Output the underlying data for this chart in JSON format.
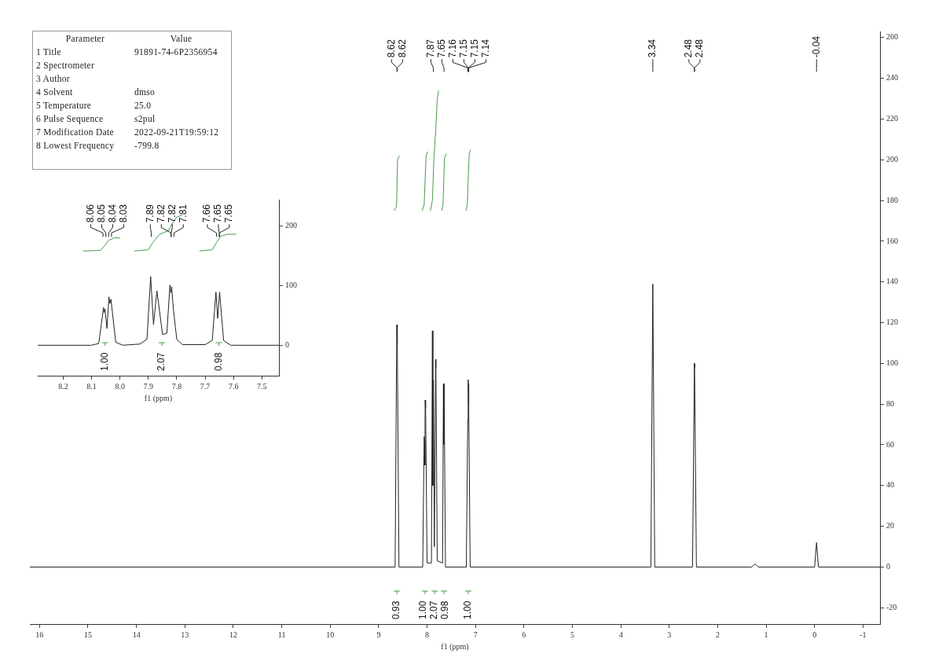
{
  "chart_data": [
    {
      "type": "other",
      "annotations": [
        "Parameter",
        "Value",
        "1 Title",
        "91891-74-6P2356954",
        "2 Spectrometer",
        null,
        "3 Author",
        null,
        "4 Solvent",
        "dmso",
        "5 Temperature",
        "25.0",
        "6 Pulse Sequence",
        "s2pul",
        "7 Modification Date",
        "2022-09-21T19:59:12",
        "8 Lowest Frequency",
        "-799.8"
      ]
    },
    {
      "type": "line",
      "xlabel": "f1 (ppm)",
      "xlim": [
        8.29,
        7.44
      ],
      "ylim": [
        -51,
        244
      ],
      "xticks": [
        8.2,
        8.1,
        {
          "value": 8,
          "label": "8.0"
        },
        7.9,
        7.8,
        7.7,
        7.6,
        7.5
      ],
      "yticks": [
        0,
        100,
        200
      ],
      "grid": false,
      "legend": false,
      "marker": "none",
      "series": [
        {
          "color": "#222222",
          "x": [
            8.29,
            8.1,
            8.075,
            8.058,
            8.056,
            8.053,
            8.046,
            8.039,
            8.036,
            8.032,
            8.015,
            7.99,
            7.93,
            7.905,
            7.892,
            7.882,
            7.87,
            7.85,
            7.835,
            7.824,
            7.821,
            7.818,
            7.812,
            7.8,
            7.78,
            7.7,
            7.675,
            7.662,
            7.656,
            7.649,
            7.635,
            7.61,
            7.44
          ],
          "values": [
            0,
            0,
            3,
            63,
            55,
            61,
            28,
            81,
            70,
            77,
            5,
            0,
            2,
            10,
            115,
            35,
            91,
            18,
            20,
            101,
            88,
            98,
            60,
            10,
            1,
            1,
            8,
            89,
            45,
            89,
            8,
            0,
            0
          ]
        },
        {
          "color": "#4a9a4a",
          "x": [
            8.13,
            8.07,
            8.055,
            8.04,
            8.02,
            8.0
          ],
          "values": [
            158,
            159,
            166,
            176,
            180,
            180
          ]
        },
        {
          "color": "#4a9a4a",
          "x": [
            7.95,
            7.9,
            7.885,
            7.86,
            7.83,
            7.815,
            7.8,
            7.78
          ],
          "values": [
            158,
            160,
            172,
            186,
            192,
            205,
            215,
            218
          ]
        },
        {
          "color": "#4a9a4a",
          "x": [
            7.72,
            7.675,
            7.66,
            7.645,
            7.62,
            7.59
          ],
          "values": [
            158,
            160,
            172,
            183,
            186,
            186
          ]
        }
      ],
      "annotations": [
        "8.06",
        "8.05",
        "8.04",
        "8.03",
        "7.89",
        "7.82",
        "7.82",
        "7.81",
        "7.66",
        "7.65",
        "7.65",
        "1.00",
        "2.07",
        "0.98"
      ]
    },
    {
      "type": "line",
      "xlabel": "f1 (ppm)",
      "xlim": [
        16.2,
        -1.35
      ],
      "ylim": [
        -28,
        263
      ],
      "xticks": [
        16,
        15,
        14,
        13,
        12,
        11,
        10,
        9,
        8,
        7,
        6,
        5,
        4,
        3,
        2,
        1,
        0,
        -1
      ],
      "yticks": [
        -20,
        0,
        20,
        40,
        60,
        80,
        100,
        120,
        140,
        160,
        180,
        200,
        220,
        240,
        260
      ],
      "grid": false,
      "legend": false,
      "marker": "none",
      "series": [
        {
          "color": "#222222",
          "x": [
            16.2,
            9.0,
            8.66,
            8.625,
            8.615,
            8.58,
            8.09,
            8.06,
            8.053,
            8.045,
            8.04,
            8.03,
            8.0,
            7.91,
            7.89,
            7.88,
            7.87,
            7.85,
            7.824,
            7.818,
            7.79,
            7.68,
            7.662,
            7.655,
            7.649,
            7.62,
            7.19,
            7.16,
            7.152,
            7.148,
            7.14,
            7.11,
            3.38,
            3.34,
            3.3,
            2.52,
            2.482,
            2.478,
            2.44,
            1.3,
            1.23,
            1.16,
            0.0,
            -0.04,
            -0.08,
            -1.35
          ],
          "values": [
            0,
            0,
            0,
            119,
            110,
            0,
            0,
            64,
            62,
            50,
            82,
            78,
            2,
            2,
            116,
            40,
            92,
            10,
            102,
            98,
            3,
            2,
            90,
            60,
            90,
            0,
            0,
            73,
            92,
            90,
            80,
            0,
            0,
            139,
            0,
            0,
            100,
            98,
            0,
            0,
            1.5,
            0,
            0,
            12,
            0,
            0
          ]
        },
        {
          "color": "#4a9a4a",
          "x": [
            8.68,
            8.63,
            8.61,
            8.57
          ],
          "values": [
            175,
            177,
            200,
            202
          ]
        },
        {
          "color": "#4a9a4a",
          "x": [
            8.1,
            8.06,
            8.02,
            7.99
          ],
          "values": [
            175,
            178,
            202,
            204
          ]
        },
        {
          "color": "#4a9a4a",
          "x": [
            7.93,
            7.89,
            7.86,
            7.82,
            7.79,
            7.76
          ],
          "values": [
            175,
            180,
            200,
            215,
            230,
            234
          ]
        },
        {
          "color": "#4a9a4a",
          "x": [
            7.7,
            7.67,
            7.64,
            7.6
          ],
          "values": [
            175,
            178,
            201,
            203
          ]
        },
        {
          "color": "#4a9a4a",
          "x": [
            7.2,
            7.17,
            7.13,
            7.1
          ],
          "values": [
            175,
            178,
            203,
            205
          ]
        }
      ],
      "annotations": [
        "8.62",
        "8.62",
        "7.87",
        "7.65",
        "7.16",
        "7.15",
        "7.15",
        "7.14",
        "3.34",
        "2.48",
        "2.48",
        "-0.04",
        "0.93",
        "1.00",
        "2.07",
        "0.98",
        "1.00"
      ]
    }
  ]
}
